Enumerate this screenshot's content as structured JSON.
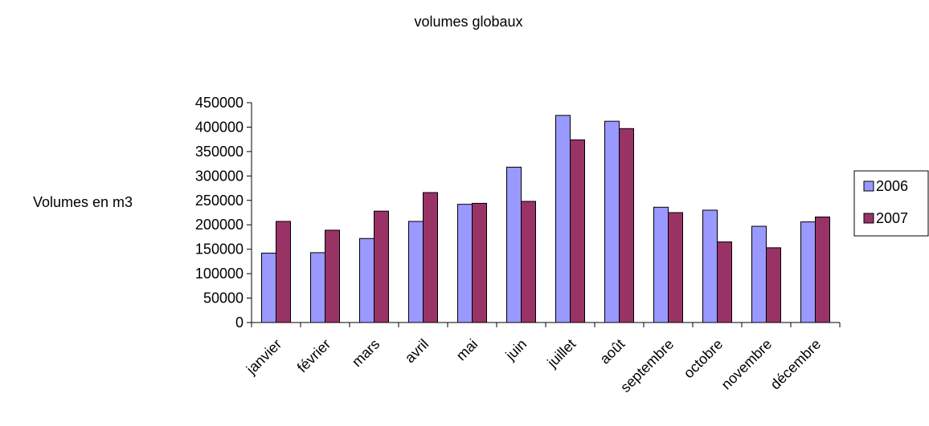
{
  "chart_data": {
    "type": "bar",
    "title": "volumes globaux",
    "xlabel": "",
    "ylabel": "Volumes en m3",
    "ylim": [
      0,
      450000
    ],
    "yticks": [
      0,
      50000,
      100000,
      150000,
      200000,
      250000,
      300000,
      350000,
      400000,
      450000
    ],
    "grid": false,
    "legend_position": "right",
    "categories": [
      "janvier",
      "février",
      "mars",
      "avril",
      "mai",
      "juin",
      "juillet",
      "août",
      "septembre",
      "octobre",
      "novembre",
      "décembre"
    ],
    "series": [
      {
        "name": "2006",
        "color": "#9999ff",
        "values": [
          142000,
          143000,
          172000,
          207000,
          242000,
          318000,
          424000,
          412000,
          236000,
          230000,
          197000,
          206000
        ]
      },
      {
        "name": "2007",
        "color": "#993366",
        "values": [
          207000,
          189000,
          228000,
          266000,
          244000,
          248000,
          374000,
          397000,
          225000,
          165000,
          153000,
          216000
        ]
      }
    ]
  }
}
